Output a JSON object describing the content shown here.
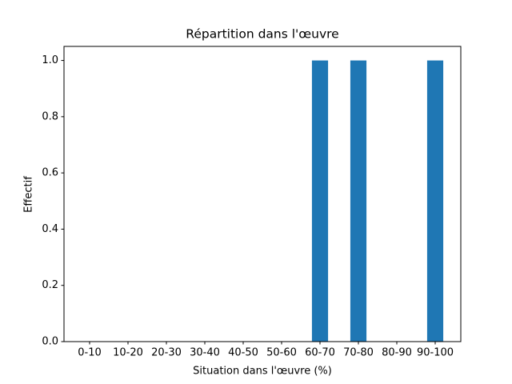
{
  "chart_data": {
    "type": "bar",
    "title": "Répartition dans l'œuvre",
    "xlabel": "Situation dans l'œuvre (%)",
    "ylabel": "Effectif",
    "categories": [
      "0-10",
      "10-20",
      "20-30",
      "30-40",
      "40-50",
      "50-60",
      "60-70",
      "70-80",
      "80-90",
      "90-100"
    ],
    "values": [
      0,
      0,
      0,
      0,
      0,
      0,
      1,
      1,
      0,
      1
    ],
    "color": "#1f77b4",
    "ylim": [
      0,
      1.05
    ],
    "yticks": [
      {
        "value": 0,
        "label": "0.0"
      },
      0.2,
      0.4,
      0.6,
      0.8,
      {
        "value": 1,
        "label": "1.0"
      }
    ],
    "grid": false
  }
}
